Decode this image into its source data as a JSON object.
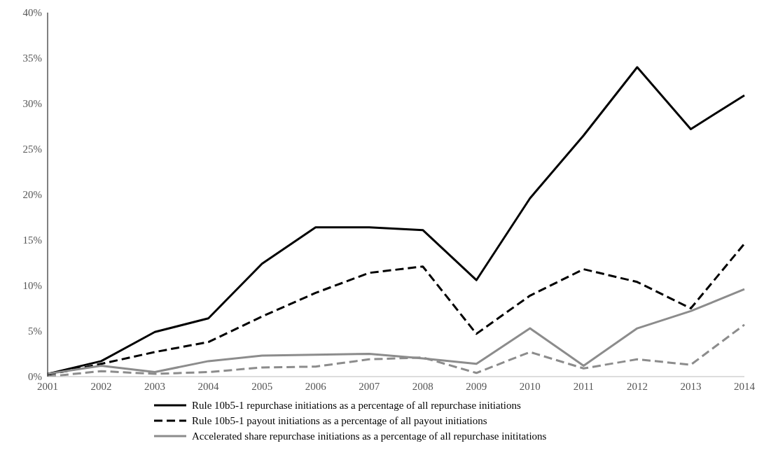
{
  "chart_data": {
    "type": "line",
    "categories": [
      "2001",
      "2002",
      "2003",
      "2004",
      "2005",
      "2006",
      "2007",
      "2008",
      "2009",
      "2010",
      "2011",
      "2012",
      "2013",
      "2014"
    ],
    "series": [
      {
        "name": "Rule 10b5-1 repurchase initiations as a percentage of all repurchase initiations",
        "color": "#000000",
        "line_style": "solid",
        "values": [
          0.3,
          1.7,
          4.9,
          6.4,
          12.4,
          16.4,
          16.4,
          16.1,
          10.6,
          19.6,
          26.5,
          34.0,
          27.2,
          30.9
        ]
      },
      {
        "name": "Rule 10b5-1 payout initiations as a percentage of all payout initiations",
        "color": "#000000",
        "line_style": "dashed",
        "values": [
          0.2,
          1.4,
          2.7,
          3.8,
          6.6,
          9.2,
          11.4,
          12.1,
          4.7,
          8.9,
          11.8,
          10.4,
          7.5,
          14.6
        ]
      },
      {
        "name": "Accelerated share repurchase initiations as a percentage of all repurchase inititations",
        "color": "#8c8c8c",
        "line_style": "solid",
        "values": [
          0.3,
          1.2,
          0.5,
          1.7,
          2.3,
          2.4,
          2.5,
          2.0,
          1.4,
          5.3,
          1.2,
          5.3,
          7.2,
          9.6
        ]
      },
      {
        "color": "#8c8c8c",
        "line_style": "dashed",
        "values": [
          0.0,
          0.6,
          0.3,
          0.5,
          1.0,
          1.1,
          1.9,
          2.1,
          0.4,
          2.7,
          0.9,
          1.9,
          1.3,
          5.7
        ]
      }
    ],
    "ylim": [
      0,
      40
    ],
    "yticks": [
      {
        "value": 0,
        "label": "0%"
      },
      {
        "value": 5,
        "label": "5%"
      },
      {
        "value": 10,
        "label": "10%"
      },
      {
        "value": 15,
        "label": "15%"
      },
      {
        "value": 20,
        "label": "20%"
      },
      {
        "value": 25,
        "label": "25%"
      },
      {
        "value": 30,
        "label": "30%"
      },
      {
        "value": 35,
        "label": "35%"
      },
      {
        "value": 40,
        "label": "40%"
      }
    ],
    "grid": false,
    "legend": "bottom",
    "marker": "none"
  }
}
